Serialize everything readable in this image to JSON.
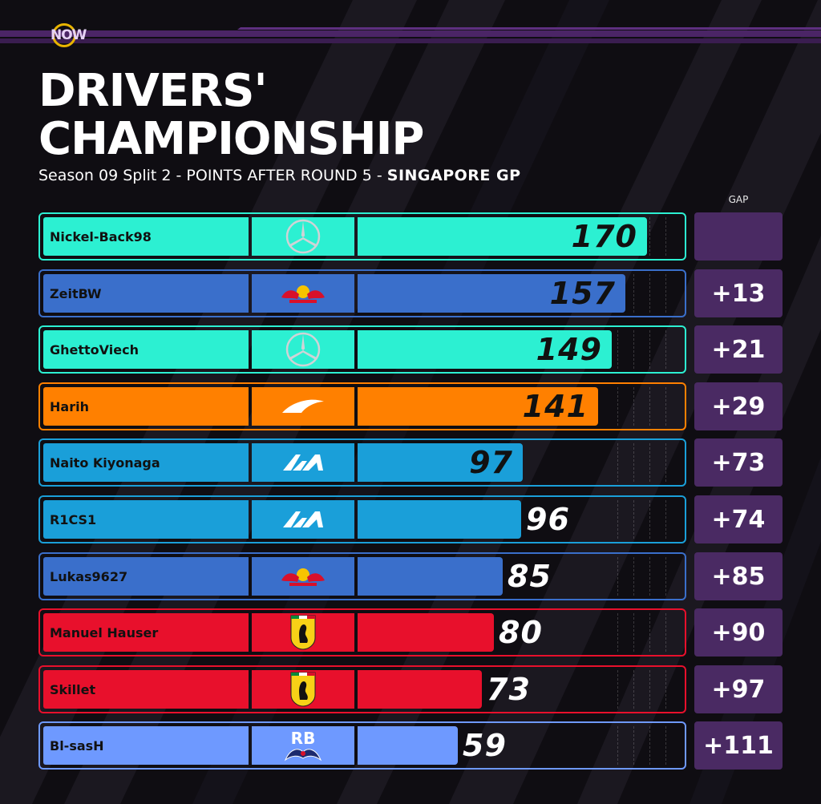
{
  "brand": {
    "logo_text": "NOW"
  },
  "header": {
    "title_line1": "DRIVERS'",
    "title_line2": "CHAMPIONSHIP",
    "subtitle_plain": "Season 09 Split 2 - POINTS AFTER ROUND 5 - ",
    "subtitle_bold": "SINGAPORE GP"
  },
  "gap_header": "GAP",
  "colors": {
    "mercedes": "#2cf0d2",
    "redbull": "#3a6fcb",
    "mclaren": "#ff8000",
    "alpine": "#1a9fd9",
    "ferrari": "#e8102c",
    "rb": "#6e99ff",
    "gap_box": "#4a2a63",
    "accent_purple": "#5b2f7a"
  },
  "chart_data": {
    "type": "bar",
    "categories": [
      "Nickel-Back98",
      "ZeitBW",
      "GhettoViech",
      "Harih",
      "Naito Kiyonaga",
      "R1CS1",
      "Lukas9627",
      "Manuel Hauser",
      "Skillet",
      "Bl-sasH"
    ],
    "values": [
      170,
      157,
      149,
      141,
      97,
      96,
      85,
      80,
      73,
      59
    ],
    "gaps": [
      "",
      "+13",
      "+21",
      "+29",
      "+73",
      "+74",
      "+85",
      "+90",
      "+97",
      "+111"
    ],
    "teams": [
      "mercedes",
      "redbull",
      "mercedes",
      "mclaren",
      "alpine",
      "alpine",
      "redbull",
      "ferrari",
      "ferrari",
      "rb"
    ],
    "team_logos": [
      "mercedes-icon",
      "redbull-icon",
      "mercedes-icon",
      "mclaren-icon",
      "alpine-icon",
      "alpine-icon",
      "redbull-icon",
      "ferrari-icon",
      "ferrari-icon",
      "rb-icon"
    ],
    "title": "DRIVERS' CHAMPIONSHIP",
    "xlabel": "",
    "ylabel": "",
    "xlim": [
      0,
      190
    ],
    "grid": true
  }
}
